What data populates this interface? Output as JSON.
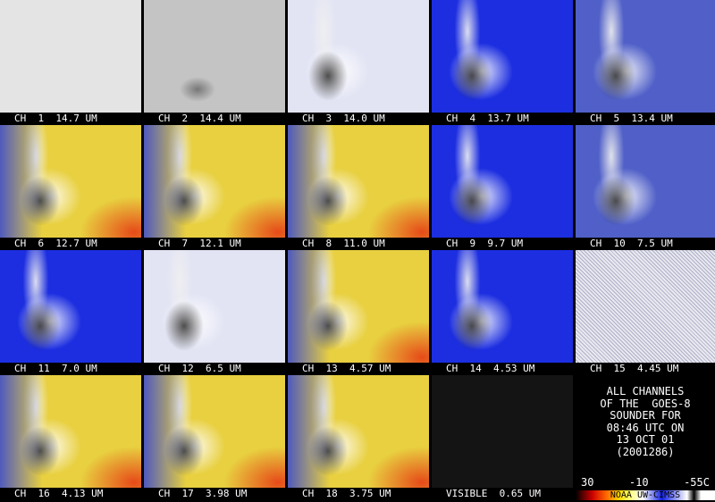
{
  "panels": [
    {
      "label": "CH  1  14.7 UM"
    },
    {
      "label": "CH  2  14.4 UM"
    },
    {
      "label": "CH  3  14.0 UM"
    },
    {
      "label": "CH  4  13.7 UM"
    },
    {
      "label": "CH  5  13.4 UM"
    },
    {
      "label": "CH  6  12.7 UM"
    },
    {
      "label": "CH  7  12.1 UM"
    },
    {
      "label": "CH  8  11.0 UM"
    },
    {
      "label": "CH  9  9.7 UM"
    },
    {
      "label": "CH  10  7.5 UM"
    },
    {
      "label": "CH  11  7.0 UM"
    },
    {
      "label": "CH  12  6.5 UM"
    },
    {
      "label": "CH  13  4.57 UM"
    },
    {
      "label": "CH  14  4.53 UM"
    },
    {
      "label": "CH  15  4.45 UM"
    },
    {
      "label": "CH  16  4.13 UM"
    },
    {
      "label": "CH  17  3.98 UM"
    },
    {
      "label": "CH  18  3.75 UM"
    },
    {
      "label": "VISIBLE  0.65 UM"
    }
  ],
  "info": {
    "lines": [
      "ALL CHANNELS",
      "OF THE  GOES-8",
      "SOUNDER FOR",
      "08:46 UTC ON",
      "13 OCT 01",
      "(2001286)"
    ],
    "scale_labels": [
      "30",
      "-10",
      "-55C"
    ],
    "credit": "NOAA UW-CIMSS"
  }
}
